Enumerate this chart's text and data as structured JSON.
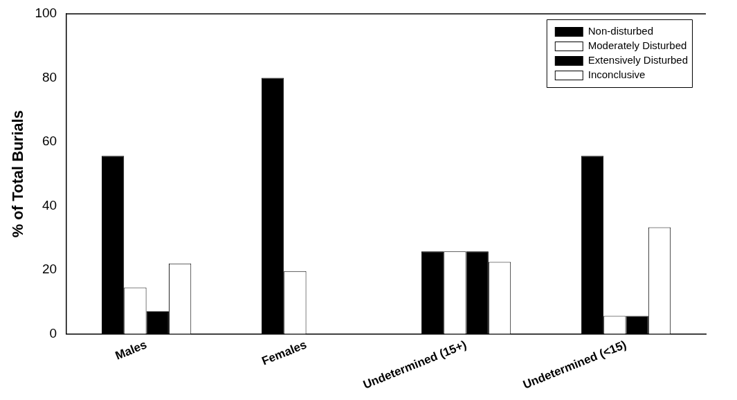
{
  "chart_data": {
    "type": "bar",
    "ylabel": "% of Total Burials",
    "categories": [
      "Males",
      "Females",
      "Undetermined (15+)",
      "Undetermined (<15)"
    ],
    "series": [
      {
        "name": "Non-disturbed",
        "color": "#000000",
        "values": [
          55.6,
          80,
          25.8,
          55.6
        ]
      },
      {
        "name": "Moderately Disturbed",
        "color": "#ffffff",
        "values": [
          14.5,
          19.6,
          25.8,
          5.6
        ]
      },
      {
        "name": "Extensively Disturbed",
        "color": "#000000",
        "values": [
          7,
          0,
          25.8,
          5.6
        ]
      },
      {
        "name": "Inconclusive",
        "color": "#ffffff",
        "values": [
          22,
          0,
          22.5,
          33.3
        ]
      }
    ],
    "ylim": [
      0,
      100
    ],
    "yticks": [
      0,
      20,
      40,
      60,
      80,
      100
    ],
    "grid": false,
    "legend": "top right"
  }
}
